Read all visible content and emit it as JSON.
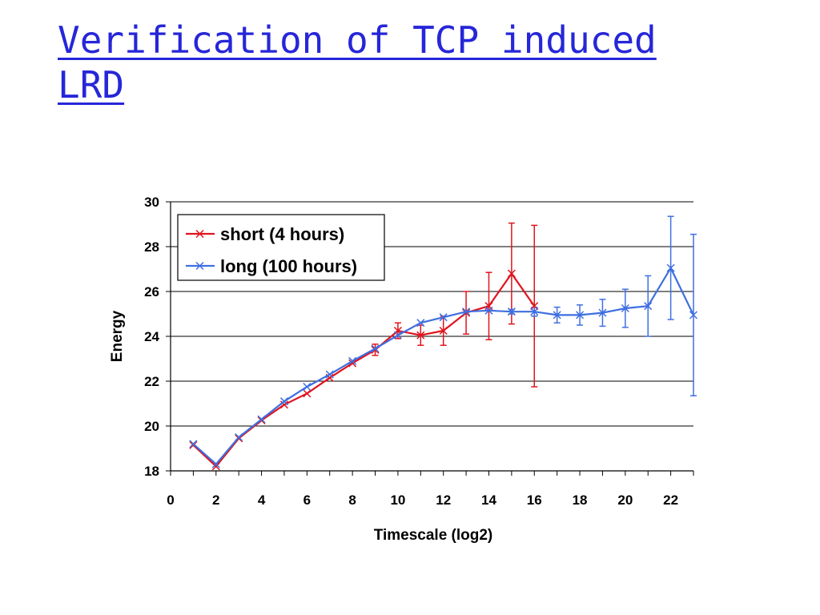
{
  "slide": {
    "title_line1": "Verification of TCP induced",
    "title_line2": "LRD"
  },
  "colors": {
    "title": "#2626d9",
    "short": "#e0141e",
    "long": "#3f6fe0",
    "grid": "#000000"
  },
  "chart_data": {
    "type": "line",
    "title": "",
    "xlabel": "Timescale (log2)",
    "ylabel": "Energy",
    "xlim": [
      0,
      23
    ],
    "ylim": [
      18,
      30
    ],
    "xticks": [
      0,
      2,
      4,
      6,
      8,
      10,
      12,
      14,
      16,
      18,
      20,
      22
    ],
    "yticks": [
      18,
      20,
      22,
      24,
      26,
      28,
      30
    ],
    "grid": "horizontal",
    "legend_position": "top-left",
    "series": [
      {
        "name": "short (4 hours)",
        "color": "#e0141e",
        "x": [
          1,
          2,
          3,
          4,
          5,
          6,
          7,
          8,
          9,
          10,
          11,
          12,
          13,
          14,
          15,
          16
        ],
        "y": [
          19.15,
          18.2,
          19.45,
          20.25,
          20.95,
          21.45,
          22.15,
          22.8,
          23.4,
          24.25,
          24.05,
          24.25,
          25.05,
          25.35,
          26.8,
          25.35
        ],
        "err": [
          0,
          0,
          0,
          0,
          0,
          0,
          0,
          0,
          0.25,
          0.35,
          0.45,
          0.65,
          0.95,
          1.5,
          2.25,
          3.6
        ]
      },
      {
        "name": "long (100 hours)",
        "color": "#3f6fe0",
        "x": [
          1,
          2,
          3,
          4,
          5,
          6,
          7,
          8,
          9,
          10,
          11,
          12,
          13,
          14,
          15,
          16,
          17,
          18,
          19,
          20,
          21,
          22,
          23
        ],
        "y": [
          19.2,
          18.3,
          19.5,
          20.3,
          21.1,
          21.75,
          22.3,
          22.9,
          23.45,
          24.05,
          24.6,
          24.85,
          25.1,
          25.15,
          25.1,
          25.1,
          24.95,
          24.95,
          25.05,
          25.25,
          25.35,
          27.05,
          24.95
        ],
        "err": [
          0,
          0,
          0,
          0,
          0,
          0,
          0,
          0,
          0,
          0,
          0,
          0,
          0,
          0,
          0.1,
          0.2,
          0.35,
          0.45,
          0.6,
          0.85,
          1.35,
          2.3,
          3.6
        ]
      }
    ]
  }
}
